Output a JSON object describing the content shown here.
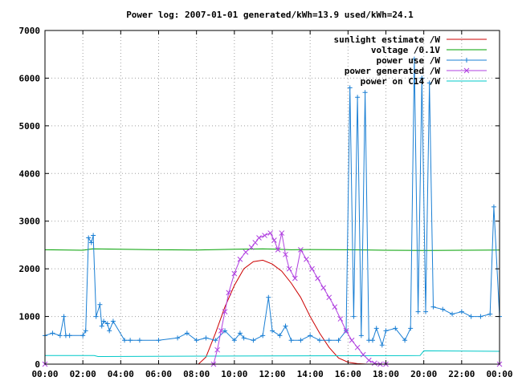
{
  "chart_data": {
    "type": "line",
    "title": "Power log: 2007-01-01 generated/kWh=13.9 used/kWh=24.1",
    "xlabel": "",
    "ylabel": "",
    "xlim": [
      0,
      24
    ],
    "ylim": [
      0,
      7000
    ],
    "grid": true,
    "legend_position": "top-right",
    "x_tick_values": [
      0,
      2,
      4,
      6,
      8,
      10,
      12,
      14,
      16,
      18,
      20,
      22,
      24
    ],
    "x_tick_labels": [
      "00:00",
      "02:00",
      "04:00",
      "06:00",
      "08:00",
      "10:00",
      "12:00",
      "14:00",
      "16:00",
      "18:00",
      "20:00",
      "22:00",
      "00:00"
    ],
    "y_ticks": [
      0,
      1000,
      2000,
      3000,
      4000,
      5000,
      6000,
      7000
    ],
    "series": [
      {
        "name": "sunlight estimate /W",
        "color": "#cc0000",
        "marker": "none",
        "x": [
          0,
          8.1,
          8.5,
          9.0,
          9.5,
          10.0,
          10.5,
          11.0,
          11.5,
          12.0,
          12.5,
          13.0,
          13.5,
          14.0,
          14.5,
          15.0,
          15.5,
          16.0,
          16.5,
          17.0,
          17.5,
          18.0,
          24
        ],
        "values": [
          0,
          0,
          150,
          650,
          1200,
          1650,
          2000,
          2150,
          2180,
          2100,
          1950,
          1700,
          1400,
          1000,
          650,
          350,
          130,
          40,
          10,
          0,
          0,
          0,
          0
        ]
      },
      {
        "name": "voltage /0.1V",
        "color": "#00a000",
        "marker": "none",
        "x": [
          0,
          2,
          2.5,
          4,
          6,
          8,
          10,
          11.5,
          12,
          13,
          14,
          16,
          18,
          20,
          22,
          24
        ],
        "values": [
          2400,
          2390,
          2420,
          2410,
          2400,
          2395,
          2410,
          2420,
          2415,
          2400,
          2405,
          2400,
          2390,
          2385,
          2390,
          2395
        ]
      },
      {
        "name": "power use /W",
        "color": "#1a7fd4",
        "marker": "plus",
        "x": [
          0,
          0.4,
          0.8,
          1.0,
          1.1,
          1.3,
          2.0,
          2.15,
          2.3,
          2.45,
          2.55,
          2.7,
          2.9,
          3.0,
          3.1,
          3.3,
          3.4,
          3.6,
          4.2,
          4.5,
          5.0,
          6.0,
          7.0,
          7.5,
          8.0,
          8.5,
          9.0,
          9.5,
          10.0,
          10.3,
          10.5,
          11.0,
          11.5,
          11.8,
          12.0,
          12.4,
          12.7,
          13.0,
          13.5,
          14.0,
          14.5,
          15.0,
          15.5,
          15.9,
          16.1,
          16.3,
          16.5,
          16.7,
          16.9,
          17.1,
          17.3,
          17.5,
          17.8,
          18.0,
          18.5,
          19.0,
          19.3,
          19.5,
          19.7,
          19.9,
          20.1,
          20.3,
          20.5,
          21.0,
          21.5,
          22.0,
          22.5,
          23.0,
          23.5,
          23.7,
          24.0
        ],
        "values": [
          600,
          650,
          600,
          1000,
          600,
          600,
          600,
          700,
          2650,
          2550,
          2700,
          1000,
          1250,
          800,
          900,
          850,
          700,
          900,
          500,
          500,
          500,
          500,
          550,
          650,
          500,
          550,
          500,
          700,
          500,
          650,
          550,
          500,
          600,
          1400,
          700,
          600,
          800,
          500,
          500,
          600,
          500,
          500,
          500,
          700,
          5800,
          1000,
          5600,
          600,
          5700,
          500,
          500,
          750,
          400,
          700,
          750,
          500,
          750,
          6400,
          1100,
          6000,
          1100,
          5900,
          1200,
          1150,
          1050,
          1100,
          1000,
          1000,
          1050,
          3300,
          1000
        ]
      },
      {
        "name": "power generated /W",
        "color": "#b040e0",
        "marker": "cross",
        "x": [
          0,
          8.9,
          9.1,
          9.3,
          9.5,
          9.7,
          10.0,
          10.3,
          10.6,
          10.9,
          11.1,
          11.3,
          11.6,
          11.9,
          12.1,
          12.3,
          12.5,
          12.7,
          12.9,
          13.2,
          13.5,
          13.8,
          14.1,
          14.4,
          14.7,
          15.0,
          15.3,
          15.6,
          15.9,
          16.2,
          16.5,
          16.8,
          17.1,
          17.4,
          17.7,
          18.0,
          24
        ],
        "values": [
          0,
          0,
          300,
          700,
          1100,
          1500,
          1900,
          2200,
          2350,
          2450,
          2550,
          2650,
          2700,
          2750,
          2600,
          2400,
          2750,
          2300,
          2000,
          1800,
          2400,
          2200,
          2000,
          1800,
          1600,
          1400,
          1200,
          950,
          700,
          500,
          350,
          200,
          80,
          20,
          0,
          0,
          0
        ]
      },
      {
        "name": "power on C14 /W",
        "color": "#00c8c8",
        "marker": "none",
        "x": [
          0,
          2.6,
          2.8,
          10,
          19.8,
          20.0,
          24
        ],
        "values": [
          180,
          180,
          160,
          170,
          180,
          280,
          270
        ]
      }
    ]
  }
}
